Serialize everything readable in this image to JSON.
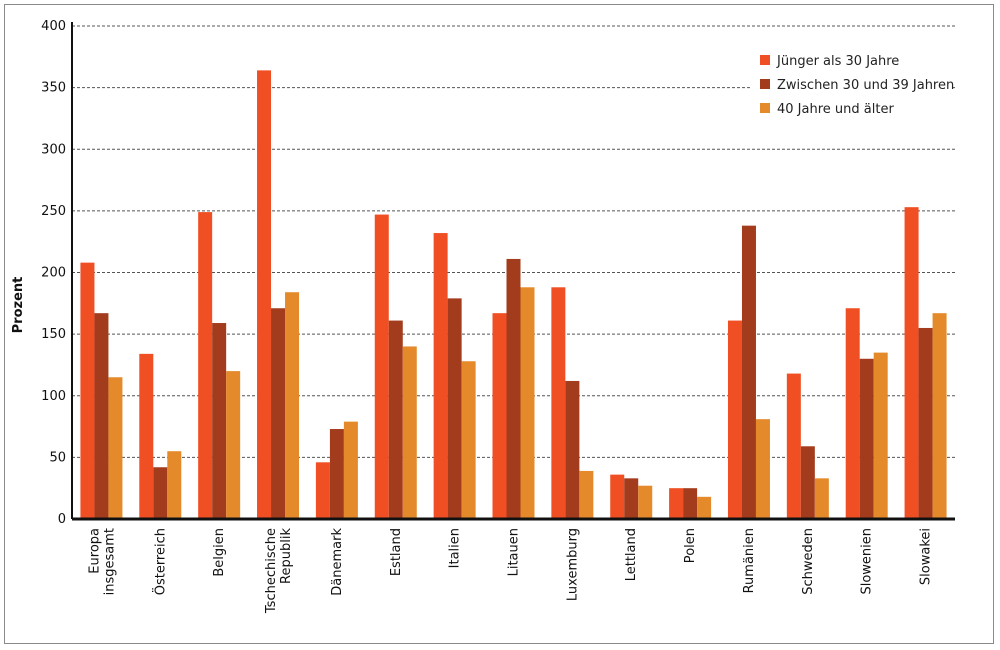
{
  "chart_data": {
    "type": "bar",
    "ylabel": "Prozent",
    "xlabel": "",
    "title": "",
    "ylim": [
      0,
      400
    ],
    "yticks": [
      0,
      50,
      100,
      150,
      200,
      250,
      300,
      350,
      400
    ],
    "grid": true,
    "legend_position": "top-right",
    "categories": [
      [
        "Europa",
        "insgesamt"
      ],
      [
        "Österreich"
      ],
      [
        "Belgien"
      ],
      [
        "Tschechische",
        "Republik"
      ],
      [
        "Dänemark"
      ],
      [
        "Estland"
      ],
      [
        "Italien"
      ],
      [
        "Litauen"
      ],
      [
        "Luxemburg"
      ],
      [
        "Lettland"
      ],
      [
        "Polen"
      ],
      [
        "Rumänien"
      ],
      [
        "Schweden"
      ],
      [
        "Slowenien"
      ],
      [
        "Slowakei"
      ]
    ],
    "series": [
      {
        "name": "Jünger als 30 Jahre",
        "color": "#f04e23",
        "values": [
          208,
          134,
          249,
          364,
          46,
          247,
          232,
          167,
          188,
          36,
          25,
          161,
          118,
          171,
          253
        ]
      },
      {
        "name": "Zwischen 30 und 39 Jahren",
        "color": "#a33c1d",
        "values": [
          167,
          42,
          159,
          171,
          73,
          161,
          179,
          211,
          112,
          33,
          25,
          238,
          59,
          130,
          155
        ]
      },
      {
        "name": "40 Jahre und älter",
        "color": "#e48a2b",
        "values": [
          115,
          55,
          120,
          184,
          79,
          140,
          128,
          188,
          39,
          27,
          18,
          81,
          33,
          135,
          167
        ]
      }
    ]
  }
}
